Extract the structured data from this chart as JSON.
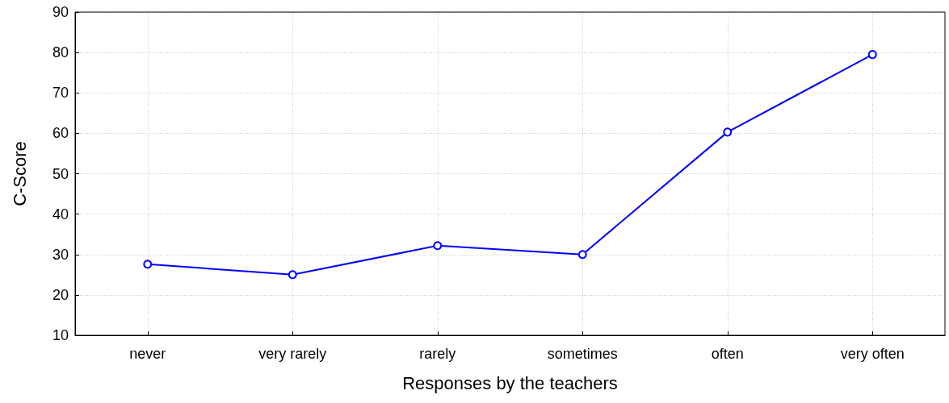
{
  "chart_data": {
    "type": "line",
    "xlabel": "Responses by the teachers",
    "ylabel": "C-Score",
    "categories": [
      "never",
      "very rarely",
      "rarely",
      "sometimes",
      "often",
      "very often"
    ],
    "series": [
      {
        "color": "#0000ff",
        "values": [
          27.6,
          25.0,
          32.2,
          30.0,
          60.3,
          79.5
        ]
      }
    ],
    "ylim": [
      10,
      90
    ],
    "yticks": [
      10,
      20,
      30,
      40,
      50,
      60,
      70,
      80,
      90
    ],
    "grid": true,
    "marker": "circle",
    "line_style": "solid"
  }
}
